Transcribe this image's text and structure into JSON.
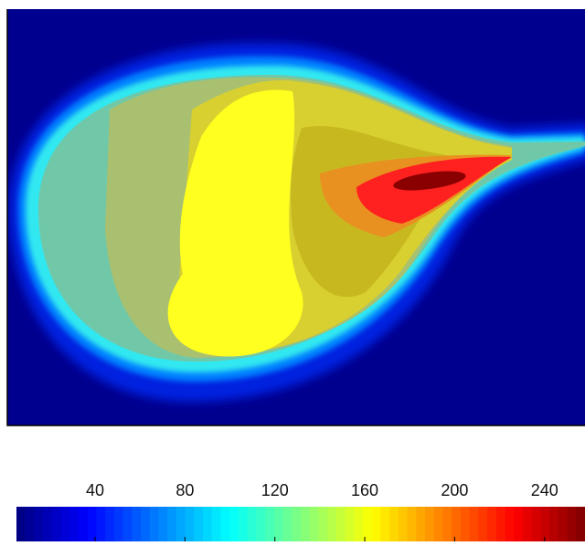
{
  "chart_data": {
    "type": "heatmap",
    "colorbar": {
      "lim": [
        5,
        258
      ],
      "ticks": [
        40,
        80,
        120,
        160,
        200,
        240
      ]
    }
  }
}
